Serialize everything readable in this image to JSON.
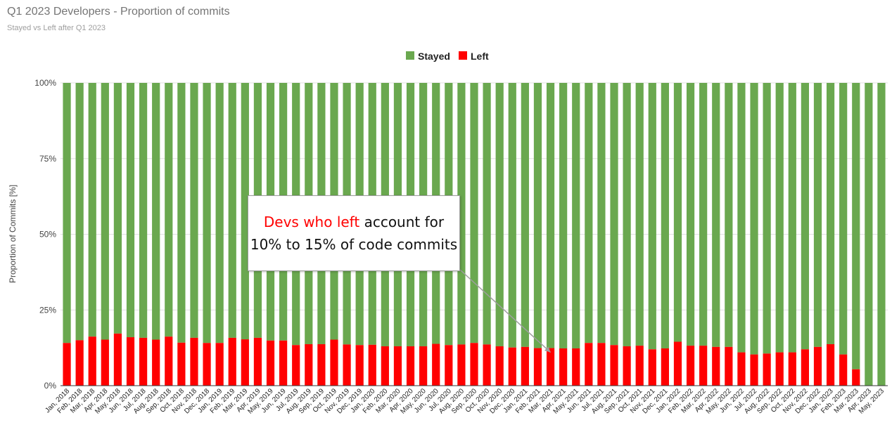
{
  "title": "Q1 2023 Developers - Proportion of commits",
  "subtitle": "Stayed vs Left after Q1 2023",
  "colors": {
    "stayed": "#6aa84f",
    "left": "#ff0000",
    "grid": "#e0e0e0",
    "axis": "#333333"
  },
  "annotation": {
    "highlight": "Devs who left",
    "line1_rest": " account for",
    "line2": "10% to 15% of code commits",
    "target_category": "Mar, 2021"
  },
  "chart_data": {
    "type": "bar",
    "stacked": true,
    "normalized": true,
    "title": "Q1 2023 Developers - Proportion of commits",
    "subtitle": "Stayed vs Left after Q1 2023",
    "xlabel": "",
    "ylabel": "Proportion of Commits [%]",
    "ylim": [
      0,
      100
    ],
    "yticks": [
      "0%",
      "25%",
      "50%",
      "75%",
      "100%"
    ],
    "legend": "top-center",
    "categories": [
      "Jan, 2018",
      "Feb, 2018",
      "Mar, 2018",
      "Apr, 2018",
      "May, 2018",
      "Jun, 2018",
      "Jul, 2018",
      "Aug, 2018",
      "Sep, 2018",
      "Oct, 2018",
      "Nov, 2018",
      "Dec, 2018",
      "Jan, 2019",
      "Feb, 2019",
      "Mar, 2019",
      "Apr, 2019",
      "May, 2019",
      "Jun, 2019",
      "Jul, 2019",
      "Aug, 2019",
      "Sep, 2019",
      "Oct, 2019",
      "Nov, 2019",
      "Dec, 2019",
      "Jan, 2020",
      "Feb, 2020",
      "Mar, 2020",
      "Apr, 2020",
      "May, 2020",
      "Jun, 2020",
      "Jul, 2020",
      "Aug, 2020",
      "Sep, 2020",
      "Oct, 2020",
      "Nov, 2020",
      "Dec, 2020",
      "Jan, 2021",
      "Feb, 2021",
      "Mar, 2021",
      "Apr, 2021",
      "May, 2021",
      "Jun, 2021",
      "Jul, 2021",
      "Aug, 2021",
      "Sep, 2021",
      "Oct, 2021",
      "Nov, 2021",
      "Dec, 2021",
      "Jan, 2022",
      "Feb, 2022",
      "Mar, 2022",
      "Apr, 2022",
      "May, 2022",
      "Jun, 2022",
      "Jul, 2022",
      "Aug, 2022",
      "Sep, 2022",
      "Oct, 2022",
      "Nov, 2022",
      "Dec, 2022",
      "Jan, 2023",
      "Feb, 2023",
      "Mar, 2023",
      "Apr, 2023",
      "May, 2023"
    ],
    "series": [
      {
        "name": "Left",
        "values": [
          14.1,
          15.0,
          16.2,
          15.2,
          17.2,
          16.0,
          15.8,
          15.2,
          16.2,
          14.2,
          15.8,
          14.1,
          14.1,
          15.8,
          15.3,
          15.8,
          14.9,
          14.9,
          13.4,
          13.7,
          13.7,
          15.2,
          13.6,
          13.4,
          13.5,
          13.0,
          13.0,
          13.0,
          13.0,
          13.8,
          13.4,
          13.6,
          14.1,
          13.6,
          13.0,
          12.6,
          12.8,
          12.4,
          12.4,
          12.3,
          12.3,
          14.1,
          14.1,
          13.4,
          13.0,
          13.2,
          12.0,
          12.3,
          14.5,
          13.2,
          13.2,
          12.8,
          12.8,
          11.0,
          10.3,
          10.6,
          11.0,
          11.0,
          12.0,
          12.8,
          13.7,
          10.3,
          5.4,
          0.0,
          0.0
        ]
      },
      {
        "name": "Stayed",
        "values": [
          85.9,
          85.0,
          83.8,
          84.8,
          82.8,
          84.0,
          84.2,
          84.8,
          83.8,
          85.8,
          84.2,
          85.9,
          85.9,
          84.2,
          84.7,
          84.2,
          85.1,
          85.1,
          86.6,
          86.3,
          86.3,
          84.8,
          86.4,
          86.6,
          86.5,
          87.0,
          87.0,
          87.0,
          87.0,
          86.2,
          86.6,
          86.4,
          85.9,
          86.4,
          87.0,
          87.4,
          87.2,
          87.6,
          87.6,
          87.7,
          87.7,
          85.9,
          85.9,
          86.6,
          87.0,
          86.8,
          88.0,
          87.7,
          85.5,
          86.8,
          86.8,
          87.2,
          87.2,
          89.0,
          89.7,
          89.4,
          89.0,
          89.0,
          88.0,
          87.2,
          86.3,
          89.7,
          94.6,
          100.0,
          100.0
        ]
      }
    ]
  }
}
